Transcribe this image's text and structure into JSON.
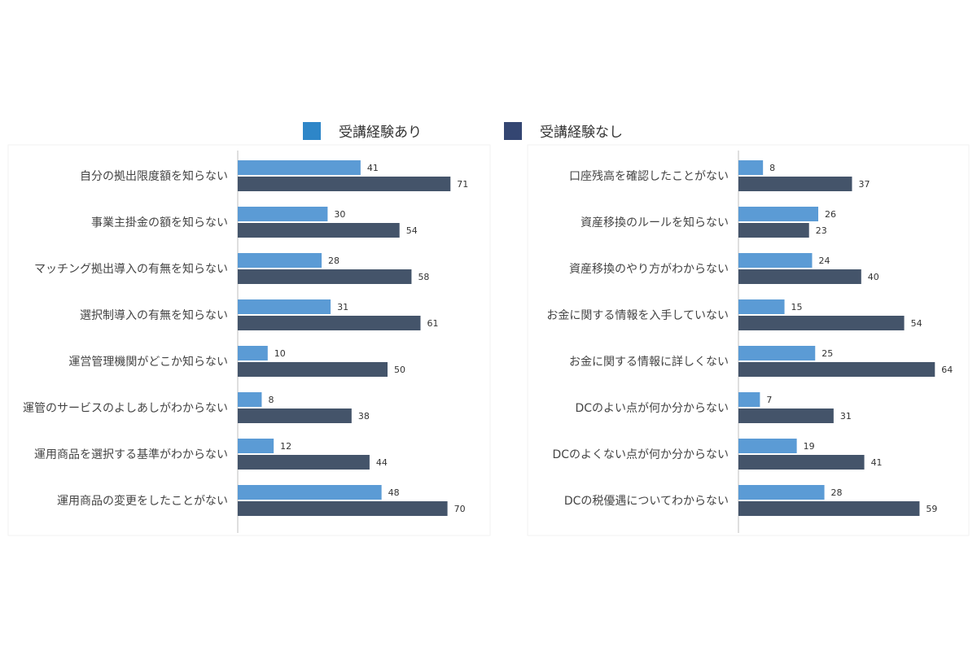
{
  "legend": {
    "series_a": "受講経験あり",
    "series_b": "受講経験なし"
  },
  "colors": {
    "series_a": "#5b9bd5",
    "series_b": "#44546a",
    "legend_a": "#2e86c8",
    "legend_b": "#344672",
    "axis": "#bfbfbf"
  },
  "chart_data": [
    {
      "type": "bar",
      "orientation": "horizontal",
      "categories": [
        "自分の拠出限度額を知らない",
        "事業主掛金の額を知らない",
        "マッチング拠出導入の有無を知らない",
        "選択制導入の有無を知らない",
        "運営管理機関がどこか知らない",
        "運管のサービスのよしあしがわからない",
        "運用商品を選択する基準がわからない",
        "運用商品の変更をしたことがない"
      ],
      "series": [
        {
          "name": "受講経験あり",
          "values": [
            41,
            30,
            28,
            31,
            10,
            8,
            12,
            48
          ]
        },
        {
          "name": "受講経験なし",
          "values": [
            71,
            54,
            58,
            61,
            50,
            38,
            44,
            70
          ]
        }
      ],
      "xlim": [
        0,
        100
      ],
      "grid": false
    },
    {
      "type": "bar",
      "orientation": "horizontal",
      "categories": [
        "口座残高を確認したことがない",
        "資産移換のルールを知らない",
        "資産移換のやり方がわからない",
        "お金に関する情報を入手していない",
        "お金に関する情報に詳しくない",
        "DCのよい点が何か分からない",
        "DCのよくない点が何か分からない",
        "DCの税優遇についてわからない"
      ],
      "series": [
        {
          "name": "受講経験あり",
          "values": [
            8,
            26,
            24,
            15,
            25,
            7,
            19,
            28
          ]
        },
        {
          "name": "受講経験なし",
          "values": [
            37,
            23,
            40,
            54,
            64,
            31,
            41,
            59
          ]
        }
      ],
      "xlim": [
        0,
        100
      ],
      "grid": false
    }
  ]
}
